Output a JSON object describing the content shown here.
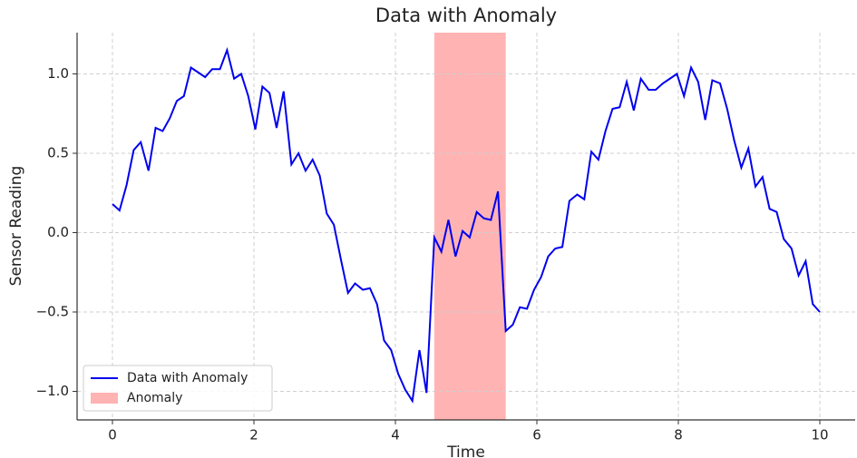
{
  "chart_data": {
    "type": "line",
    "title": "Data with Anomaly",
    "x_label": "Time",
    "y_label": "Sensor Reading",
    "x": [
      0,
      0.1,
      0.2,
      0.3,
      0.4,
      0.51,
      0.61,
      0.71,
      0.81,
      0.91,
      1.01,
      1.11,
      1.21,
      1.31,
      1.41,
      1.52,
      1.62,
      1.72,
      1.82,
      1.92,
      2.02,
      2.12,
      2.22,
      2.32,
      2.42,
      2.53,
      2.63,
      2.73,
      2.83,
      2.93,
      3.03,
      3.13,
      3.23,
      3.33,
      3.43,
      3.54,
      3.64,
      3.74,
      3.84,
      3.94,
      4.04,
      4.14,
      4.24,
      4.34,
      4.44,
      4.55,
      4.65,
      4.75,
      4.85,
      4.95,
      5.05,
      5.15,
      5.25,
      5.35,
      5.45,
      5.56,
      5.66,
      5.76,
      5.86,
      5.96,
      6.06,
      6.16,
      6.26,
      6.36,
      6.46,
      6.57,
      6.67,
      6.77,
      6.87,
      6.97,
      7.07,
      7.17,
      7.27,
      7.37,
      7.47,
      7.58,
      7.68,
      7.78,
      7.88,
      7.98,
      8.08,
      8.18,
      8.28,
      8.38,
      8.48,
      8.59,
      8.69,
      8.79,
      8.89,
      8.99,
      9.09,
      9.19,
      9.29,
      9.39,
      9.49,
      9.6,
      9.7,
      9.8,
      9.9,
      10
    ],
    "series": [
      {
        "name": "Data with Anomaly",
        "color": "#0000ee",
        "values": [
          0.18,
          0.14,
          0.3,
          0.52,
          0.57,
          0.39,
          0.66,
          0.64,
          0.72,
          0.83,
          0.86,
          1.04,
          1.01,
          0.98,
          1.03,
          1.03,
          1.15,
          0.97,
          1.0,
          0.86,
          0.65,
          0.92,
          0.88,
          0.66,
          0.89,
          0.43,
          0.5,
          0.39,
          0.46,
          0.36,
          0.12,
          0.05,
          -0.17,
          -0.38,
          -0.32,
          -0.36,
          -0.35,
          -0.45,
          -0.68,
          -0.74,
          -0.89,
          -0.99,
          -1.06,
          -0.74,
          -1.01,
          -0.03,
          -0.12,
          0.08,
          -0.15,
          0.01,
          -0.03,
          0.13,
          0.09,
          0.08,
          0.26,
          -0.62,
          -0.58,
          -0.47,
          -0.48,
          -0.36,
          -0.28,
          -0.15,
          -0.1,
          -0.09,
          0.2,
          0.24,
          0.21,
          0.51,
          0.46,
          0.64,
          0.78,
          0.79,
          0.95,
          0.77,
          0.97,
          0.9,
          0.9,
          0.94,
          0.97,
          1.0,
          0.86,
          1.04,
          0.95,
          0.71,
          0.96,
          0.94,
          0.78,
          0.58,
          0.41,
          0.53,
          0.29,
          0.35,
          0.15,
          0.13,
          -0.04,
          -0.1,
          -0.27,
          -0.18,
          -0.45,
          -0.5
        ]
      }
    ],
    "anomaly": {
      "name": "Anomaly",
      "x": [
        4.55,
        5.56
      ],
      "color": "#ffb3b3"
    },
    "xlim": [
      -0.5,
      10.5
    ],
    "xticks": [
      0,
      2,
      4,
      6,
      8,
      10
    ],
    "ylim": [
      -1.18,
      1.26
    ],
    "yticks": [
      {
        "value": -1,
        "label": "−1.0"
      },
      {
        "value": -0.5,
        "label": "−0.5"
      },
      {
        "value": 0,
        "label": "0.0"
      },
      {
        "value": 0.5,
        "label": "0.5"
      },
      {
        "value": 1,
        "label": "1.0"
      }
    ],
    "grid": true,
    "legend": "lower left"
  }
}
